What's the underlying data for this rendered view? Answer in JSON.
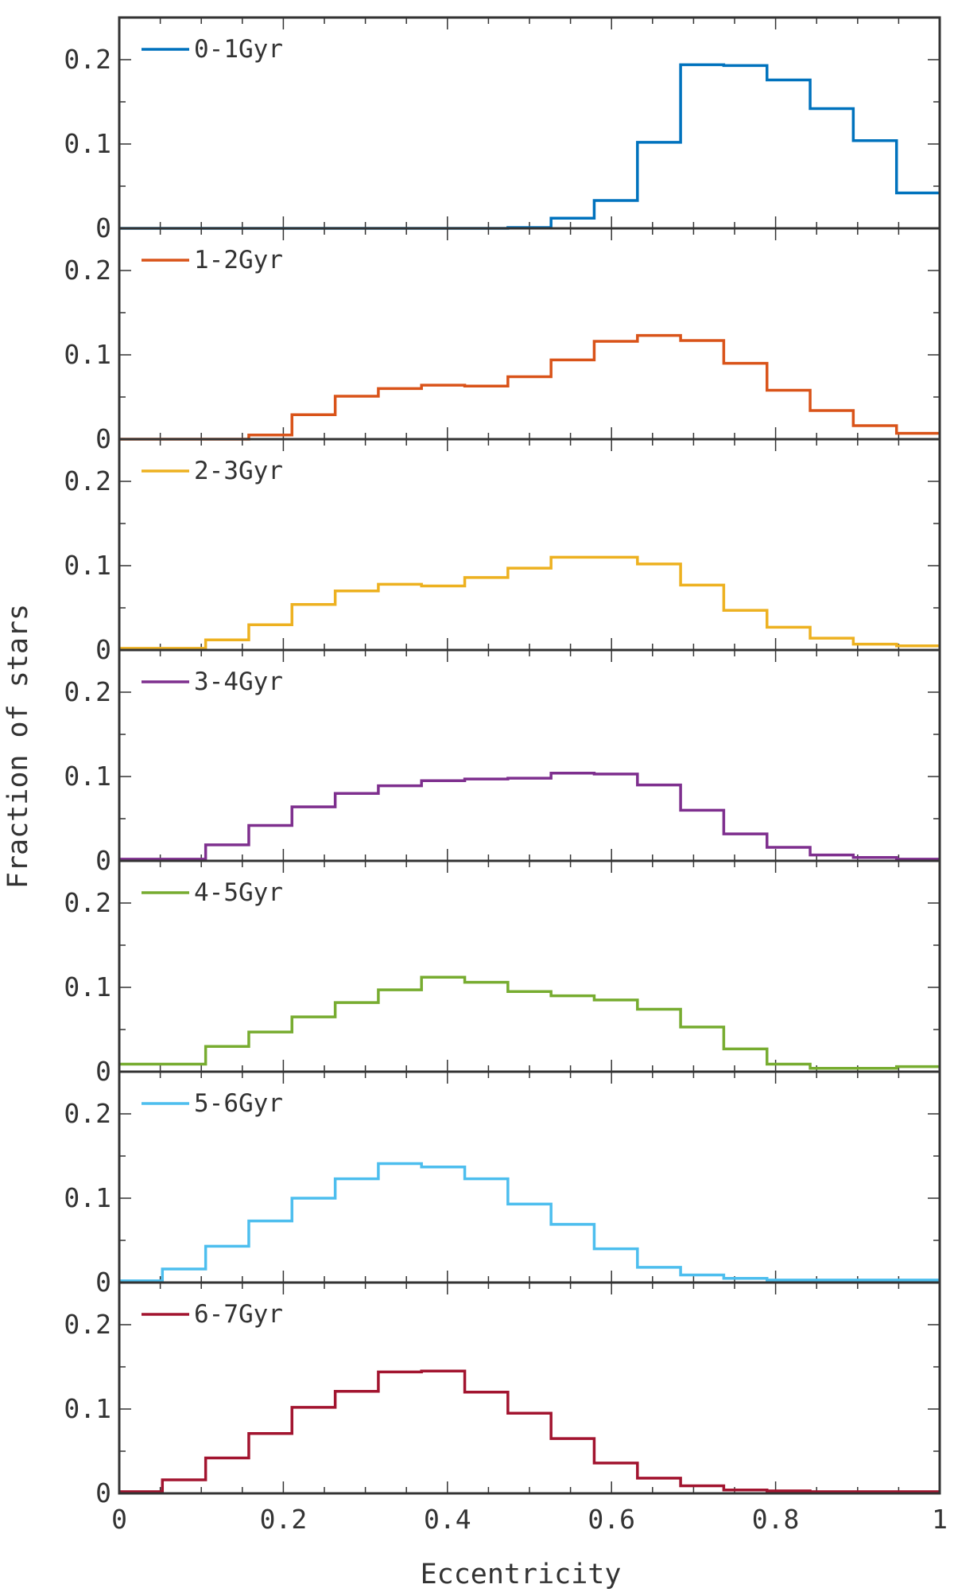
{
  "chart_data": {
    "type": "histogram",
    "xlabel": "Eccentricity",
    "ylabel": "Fraction of stars",
    "xlim": [
      0,
      1
    ],
    "ylim": [
      0,
      0.25
    ],
    "bin_width": 0.0526,
    "x_ticks": [
      0,
      0.2,
      0.4,
      0.6,
      0.8,
      1
    ],
    "x_tick_labels": [
      "0",
      "0.2",
      "0.4",
      "0.6",
      "0.8",
      "1"
    ],
    "y_ticks": [
      0,
      0.1,
      0.2
    ],
    "y_tick_labels": [
      "0",
      "0.1",
      "0.2"
    ],
    "legend_position": "top-left",
    "bin_edges": [
      0,
      0.0526,
      0.1053,
      0.1579,
      0.2105,
      0.2632,
      0.3158,
      0.3684,
      0.4211,
      0.4737,
      0.5263,
      0.5789,
      0.6316,
      0.6842,
      0.7368,
      0.7895,
      0.8421,
      0.8947,
      0.9474,
      1.0
    ],
    "series": [
      {
        "name": "0-1Gyr",
        "color": "#0072BD",
        "values": [
          0,
          0,
          0,
          0,
          0,
          0,
          0,
          0,
          0,
          0.001,
          0.012,
          0.033,
          0.102,
          0.194,
          0.193,
          0.176,
          0.142,
          0.104,
          0.042
        ]
      },
      {
        "name": "1-2Gyr",
        "color": "#D95319",
        "values": [
          0,
          0,
          0,
          0.005,
          0.029,
          0.051,
          0.06,
          0.064,
          0.063,
          0.074,
          0.094,
          0.116,
          0.123,
          0.117,
          0.09,
          0.058,
          0.034,
          0.016,
          0.007
        ]
      },
      {
        "name": "2-3Gyr",
        "color": "#EDB120",
        "values": [
          0.002,
          0.002,
          0.012,
          0.03,
          0.054,
          0.07,
          0.078,
          0.076,
          0.086,
          0.097,
          0.11,
          0.11,
          0.102,
          0.077,
          0.047,
          0.027,
          0.014,
          0.007,
          0.005
        ]
      },
      {
        "name": "3-4Gyr",
        "color": "#7E2F8E",
        "values": [
          0.002,
          0.002,
          0.019,
          0.042,
          0.064,
          0.08,
          0.089,
          0.095,
          0.097,
          0.098,
          0.104,
          0.103,
          0.09,
          0.06,
          0.032,
          0.016,
          0.007,
          0.004,
          0.002
        ]
      },
      {
        "name": "4-5Gyr",
        "color": "#77AC30",
        "values": [
          0.009,
          0.009,
          0.03,
          0.047,
          0.065,
          0.082,
          0.097,
          0.112,
          0.106,
          0.095,
          0.09,
          0.085,
          0.074,
          0.053,
          0.027,
          0.009,
          0.004,
          0.004,
          0.006
        ]
      },
      {
        "name": "5-6Gyr",
        "color": "#4DBEEE",
        "values": [
          0.002,
          0.016,
          0.043,
          0.073,
          0.1,
          0.123,
          0.141,
          0.137,
          0.123,
          0.093,
          0.069,
          0.04,
          0.018,
          0.009,
          0.005,
          0.003,
          0.003,
          0.003,
          0.003
        ]
      },
      {
        "name": "6-7Gyr",
        "color": "#A2142F",
        "values": [
          0.002,
          0.016,
          0.042,
          0.071,
          0.102,
          0.121,
          0.144,
          0.145,
          0.12,
          0.095,
          0.065,
          0.036,
          0.018,
          0.009,
          0.004,
          0.003,
          0.002,
          0.002,
          0.002
        ]
      }
    ]
  }
}
